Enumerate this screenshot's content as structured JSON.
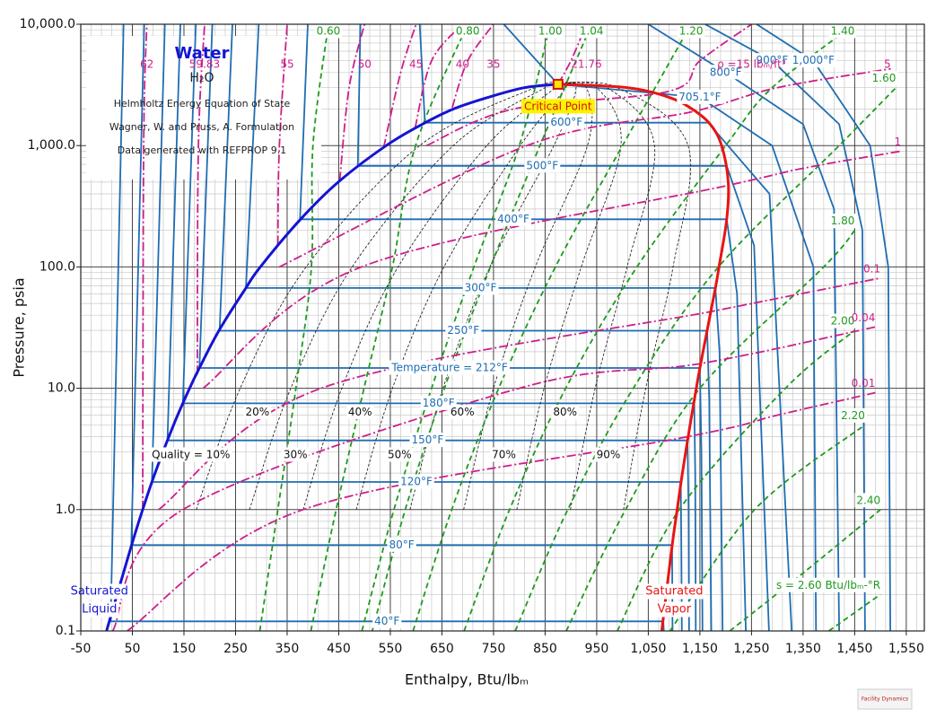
{
  "chart_data": {
    "type": "ph-diagram",
    "xlabel": "Enthalpy, Btu/lbₘ",
    "ylabel": "Pressure, psia",
    "xlim": [
      -50,
      1585
    ],
    "ylim": [
      0.1,
      10000
    ],
    "ylog": true,
    "grid": true,
    "xticks": [
      -50,
      50,
      150,
      250,
      350,
      450,
      550,
      650,
      750,
      850,
      950,
      {
        "value": 1050,
        "label": "1,050"
      },
      {
        "value": 1150,
        "label": "1,150"
      },
      {
        "value": 1250,
        "label": "1,250"
      },
      {
        "value": 1350,
        "label": "1,350"
      },
      {
        "value": 1450,
        "label": "1,450"
      },
      {
        "value": 1550,
        "label": "1,550"
      }
    ],
    "xminorticks": [
      -30,
      -10,
      10,
      30,
      70,
      90,
      110,
      130,
      170,
      190,
      210,
      230,
      270,
      290,
      310,
      330,
      370,
      390,
      410,
      430,
      470,
      490,
      510,
      530,
      570,
      590,
      610,
      630,
      670,
      690,
      710,
      730,
      770,
      790,
      810,
      830,
      870,
      890,
      910,
      930,
      970,
      990,
      1010,
      1030,
      1070,
      1090,
      1110,
      1130,
      1170,
      1190,
      1210,
      1230,
      1270,
      1290,
      1310,
      1330,
      1370,
      1390,
      1410,
      1430,
      1470,
      1490,
      1510,
      1530,
      1570
    ],
    "yticks": [
      0.1,
      {
        "value": 1,
        "label": "1.0"
      },
      {
        "value": 10,
        "label": "10.0"
      },
      {
        "value": 100,
        "label": "100.0"
      },
      {
        "value": 1000,
        "label": "1,000.0"
      },
      {
        "value": 10000,
        "label": "10,000.0"
      }
    ],
    "yminorticks": [
      0.2,
      0.3,
      0.4,
      0.5,
      0.6,
      0.7,
      0.8,
      0.9,
      2,
      3,
      4,
      5,
      6,
      7,
      8,
      9,
      20,
      30,
      40,
      50,
      60,
      70,
      80,
      90,
      200,
      300,
      400,
      500,
      600,
      700,
      800,
      900,
      2000,
      3000,
      4000,
      5000,
      6000,
      7000,
      8000,
      9000
    ],
    "annotations": {
      "substance": "Water",
      "formula": "H₂O",
      "notes": [
        "Helmholtz Energy Equation of State",
        "Wagner, W. and Pruss, A. Formulation",
        "Data generated with REFPROP 9.1"
      ],
      "logo": "Facility Dynamics"
    },
    "critical_point": {
      "label": "Critical Point",
      "x": 875,
      "y": 3200
    },
    "saturation": {
      "liquid": {
        "label": [
          "Saturated",
          "Liquid"
        ],
        "color": "#1414d2",
        "x": [
          0,
          48,
          70,
          94,
          130,
          161,
          180,
          218,
          270,
          298,
          376,
          449,
          542,
          612,
          672,
          740,
          810,
          875
        ],
        "y": [
          0.1,
          0.5,
          1,
          2,
          5,
          10,
          14.7,
          30,
          67,
          100,
          247,
          500,
          1000,
          1500,
          2000,
          2500,
          3000,
          3200
        ]
      },
      "vapor": {
        "label": [
          "Saturated",
          "Vapor"
        ],
        "color": "#e81414",
        "x": [
          1076,
          1096,
          1106,
          1116,
          1131,
          1143,
          1150,
          1164,
          1180,
          1187,
          1202,
          1205,
          1192,
          1170,
          1135,
          1090,
          1010,
          875
        ],
        "y": [
          0.1,
          0.5,
          1,
          2,
          5,
          10,
          14.7,
          30,
          67,
          100,
          247,
          500,
          1000,
          1500,
          2000,
          2500,
          3000,
          3200
        ]
      }
    },
    "isotherms": {
      "color": "#1f6db3",
      "lines": [
        {
          "name": "40°F",
          "x": [
            33,
            8,
            1079,
            1080
          ],
          "y": [
            10000,
            0.12,
            0.12,
            0.1
          ]
        },
        {
          "name": "80°F",
          "x": [
            73,
            48,
            1096,
            1097
          ],
          "y": [
            10000,
            0.51,
            0.51,
            0.1
          ]
        },
        {
          "name": "120°F",
          "x": [
            113,
            88,
            1113,
            1114,
            1115
          ],
          "y": [
            10000,
            1.69,
            1.69,
            0.5,
            0.1
          ]
        },
        {
          "name": "150°F",
          "x": [
            143,
            118,
            1126,
            1128,
            1129
          ],
          "y": [
            10000,
            3.72,
            3.72,
            1,
            0.1
          ]
        },
        {
          "name": "180°F",
          "x": [
            173,
            148,
            1139,
            1141,
            1142
          ],
          "y": [
            10000,
            7.51,
            7.51,
            2,
            0.1
          ]
        },
        {
          "name": "Temperature = 212°F",
          "x": [
            205,
            180,
            1150,
            1153,
            1155
          ],
          "y": [
            10000,
            14.7,
            14.7,
            3,
            0.1
          ]
        },
        {
          "name": "250°F",
          "x": [
            244,
            219,
            1164,
            1168,
            1172
          ],
          "y": [
            10000,
            29.8,
            29.8,
            8,
            0.1
          ]
        },
        {
          "name": "300°F",
          "x": [
            295,
            270,
            1180,
            1188,
            1194
          ],
          "y": [
            10000,
            67,
            67,
            20,
            0.1
          ]
        },
        {
          "name": "400°F",
          "x": [
            390,
            375,
            1202,
            1222,
            1239
          ],
          "y": [
            10000,
            247,
            247,
            60,
            0.1
          ]
        },
        {
          "name": "500°F",
          "x": [
            492,
            487,
            1202,
            1255,
            1284
          ],
          "y": [
            10000,
            681,
            681,
            150,
            0.1
          ]
        },
        {
          "name": "600°F",
          "x": [
            607,
            617,
            1166,
            1285,
            1328
          ],
          "y": [
            10000,
            1543,
            1543,
            400,
            0.1
          ]
        },
        {
          "name": "705.1°F",
          "x": [
            770,
            875,
            1150,
            1290,
            1370,
            1375
          ],
          "y": [
            10000,
            3200,
            2500,
            1000,
            100,
            0.1
          ]
        },
        {
          "name": "800°F",
          "x": [
            1050,
            1200,
            1350,
            1410,
            1420
          ],
          "y": [
            10000,
            4000,
            1500,
            300,
            0.1
          ]
        },
        {
          "name": "900°F",
          "x": [
            1160,
            1290,
            1420,
            1465,
            1470
          ],
          "y": [
            10000,
            5000,
            1500,
            200,
            0.1
          ]
        },
        {
          "name": "1,000°F",
          "x": [
            1260,
            1370,
            1480,
            1515,
            1519
          ],
          "y": [
            10000,
            5000,
            1000,
            100,
            0.1
          ]
        }
      ]
    },
    "quality_lines": {
      "color": "#111111",
      "lines": [
        {
          "name": "Quality = 10%",
          "x": [
            174,
            259,
            387,
            607,
            830,
            875
          ],
          "y": [
            1,
            10,
            100,
            1000,
            3000,
            3200
          ]
        },
        {
          "name": "20%",
          "x": [
            277,
            357,
            476,
            672,
            850,
            875
          ],
          "y": [
            1,
            10,
            100,
            1000,
            3000,
            3200
          ]
        },
        {
          "name": "30%",
          "x": [
            381,
            456,
            565,
            737,
            870,
            875
          ],
          "y": [
            1,
            10,
            100,
            1000,
            3000,
            3200
          ]
        },
        {
          "name": "40%",
          "x": [
            484,
            554,
            654,
            802,
            890,
            875
          ],
          "y": [
            1,
            10,
            100,
            1000,
            3000,
            3200
          ]
        },
        {
          "name": "50%",
          "x": [
            588,
            652,
            743,
            867,
            910,
            875
          ],
          "y": [
            1,
            10,
            100,
            1000,
            3000,
            3200
          ]
        },
        {
          "name": "60%",
          "x": [
            692,
            750,
            831,
            932,
            930,
            875
          ],
          "y": [
            1,
            10,
            100,
            1000,
            3000,
            3200
          ]
        },
        {
          "name": "70%",
          "x": [
            795,
            848,
            920,
            997,
            950,
            875
          ],
          "y": [
            1,
            10,
            100,
            1000,
            3000,
            3200
          ]
        },
        {
          "name": "80%",
          "x": [
            899,
            947,
            1009,
            1062,
            970,
            875
          ],
          "y": [
            1,
            10,
            100,
            1000,
            3000,
            3200
          ]
        },
        {
          "name": "90%",
          "x": [
            1002,
            1045,
            1098,
            1127,
            990,
            875
          ],
          "y": [
            1,
            10,
            100,
            1000,
            3000,
            3200
          ]
        }
      ]
    },
    "entropy_lines": {
      "color": "#1e9a1e",
      "lines": [
        {
          "name": "0.60",
          "x": [
            297,
            332,
            367,
            397,
            400,
            430
          ],
          "y": [
            0.1,
            1,
            10,
            100,
            1000,
            10000
          ]
        },
        {
          "name": "0.80",
          "x": [
            396,
            445,
            499,
            554,
            599,
            700
          ],
          "y": [
            0.1,
            1,
            10,
            100,
            1000,
            10000
          ]
        },
        {
          "name": "1.00",
          "x": [
            495,
            557,
            630,
            712,
            800,
            860
          ],
          "y": [
            0.1,
            1,
            10,
            100,
            1000,
            10000
          ]
        },
        {
          "name": "1.04",
          "x": [
            515,
            579,
            655,
            744,
            840,
            940
          ],
          "y": [
            0.1,
            1,
            10,
            100,
            1000,
            10000
          ]
        },
        {
          "name": "1.20",
          "x": [
            594,
            669,
            760,
            870,
            1000,
            1133
          ],
          "y": [
            0.1,
            1,
            10,
            100,
            1000,
            10000
          ]
        },
        {
          "name": "1.40",
          "x": [
            693,
            781,
            890,
            1028,
            1200,
            1290,
            1450
          ],
          "y": [
            0.1,
            1,
            10,
            100,
            1000,
            3000,
            10000
          ]
        },
        {
          "name": "1.60",
          "x": [
            792,
            894,
            1021,
            1186,
            1420,
            1530
          ],
          "y": [
            0.1,
            1,
            10,
            100,
            1000,
            3000
          ]
        },
        {
          "name": "1.80",
          "x": [
            891,
            1006,
            1150,
            1390,
            1450
          ],
          "y": [
            0.1,
            1,
            10,
            100,
            200
          ]
        },
        {
          "name": "2.00",
          "x": [
            990,
            1110,
            1316,
            1450
          ],
          "y": [
            0.1,
            1,
            10,
            30
          ]
        },
        {
          "name": "2.20",
          "x": [
            1092,
            1256,
            1470
          ],
          "y": [
            0.1,
            1,
            5
          ]
        },
        {
          "name": "2.40",
          "x": [
            1208,
            1350,
            1500
          ],
          "y": [
            0.1,
            0.3,
            1
          ]
        },
        {
          "name": "s = 2.60 Btu/lbₘ-°R",
          "x": [
            1400,
            1500
          ],
          "y": [
            0.1,
            0.2
          ]
        }
      ]
    },
    "density_lines": {
      "color": "#cc1f8a",
      "lines": [
        {
          "name": "62",
          "x": [
            70,
            72,
            78
          ],
          "y": [
            1,
            1000,
            10000
          ]
        },
        {
          "name": "59.83",
          "x": [
            176,
            178,
            190
          ],
          "y": [
            13,
            1000,
            10000
          ]
        },
        {
          "name": "55",
          "x": [
            332,
            335,
            350
          ],
          "y": [
            153,
            1000,
            10000
          ]
        },
        {
          "name": "50",
          "x": [
            452,
            470,
            500
          ],
          "y": [
            515,
            3000,
            10000
          ]
        },
        {
          "name": "45",
          "x": [
            537,
            570,
            600
          ],
          "y": [
            960,
            4000,
            10000
          ]
        },
        {
          "name": "40",
          "x": [
            598,
            630,
            690
          ],
          "y": [
            1400,
            5000,
            10000
          ]
        },
        {
          "name": "35",
          "x": [
            670,
            700,
            750
          ],
          "y": [
            2060,
            5000,
            10000
          ]
        },
        {
          "name": "21.76",
          "x": [
            875,
            900,
            930
          ],
          "y": [
            3200,
            5000,
            10000
          ]
        },
        {
          "name": "ρ =15 lbₘ/ft³",
          "x": [
            620,
            788,
            1090,
            1150,
            1250
          ],
          "y": [
            1000,
            2000,
            2800,
            5000,
            10000
          ]
        },
        {
          "name": "5",
          "x": [
            335,
            815,
            1135,
            1300,
            1520
          ],
          "y": [
            100,
            1000,
            1900,
            3000,
            4300
          ]
        },
        {
          "name": "1",
          "x": [
            187,
            494,
            1205,
            1350,
            1540
          ],
          "y": [
            10,
            100,
            470,
            650,
            900
          ]
        },
        {
          "name": "0.1",
          "x": [
            101,
            416,
            1173,
            1300,
            1500
          ],
          "y": [
            1,
            10,
            43,
            55,
            81
          ]
        },
        {
          "name": "0.04",
          "x": [
            12,
            148,
            800,
            1152,
            1490
          ],
          "y": [
            0.1,
            1,
            10,
            16,
            32
          ]
        },
        {
          "name": "0.01",
          "x": [
            40,
            381,
            1128,
            1300,
            1490
          ],
          "y": [
            0.1,
            1,
            4,
            6,
            9.2
          ]
        }
      ]
    }
  }
}
